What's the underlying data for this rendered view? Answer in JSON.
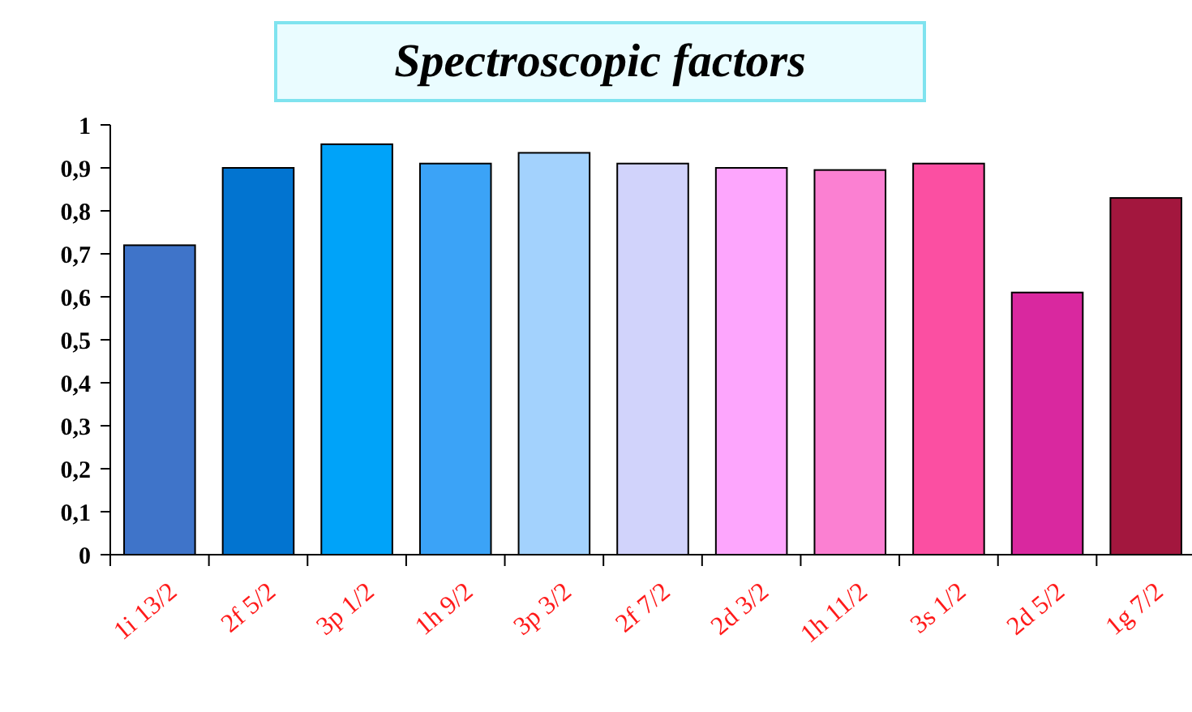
{
  "chart_data": {
    "type": "bar",
    "title": "Spectroscopic factors",
    "categories": [
      "1i 13/2",
      "2f 5/2",
      "3p 1/2",
      "1h 9/2",
      "3p 3/2",
      "2f 7/2",
      "2d 3/2",
      "1h 11/2",
      "3s 1/2",
      "2d 5/2",
      "1g 7/2"
    ],
    "values": [
      0.72,
      0.9,
      0.955,
      0.91,
      0.935,
      0.91,
      0.9,
      0.895,
      0.91,
      0.61,
      0.83
    ],
    "colors": [
      "#3f74c9",
      "#0274d0",
      "#00a3f9",
      "#3ba3f7",
      "#a3d2fd",
      "#d1d3fb",
      "#fda6fd",
      "#fb80d2",
      "#fb4fa2",
      "#d9289f",
      "#a3173e"
    ],
    "ylim": [
      0,
      1
    ],
    "yticks": [
      0,
      {
        "value": 0.1,
        "label": "0,1"
      },
      {
        "value": 0.2,
        "label": "0,2"
      },
      {
        "value": 0.3,
        "label": "0,3"
      },
      {
        "value": 0.4,
        "label": "0,4"
      },
      {
        "value": 0.5,
        "label": "0,5"
      },
      {
        "value": 0.6,
        "label": "0,6"
      },
      {
        "value": 0.7,
        "label": "0,7"
      },
      {
        "value": 0.8,
        "label": "0,8"
      },
      {
        "value": 0.9,
        "label": "0,9"
      },
      1
    ],
    "grid": false
  }
}
